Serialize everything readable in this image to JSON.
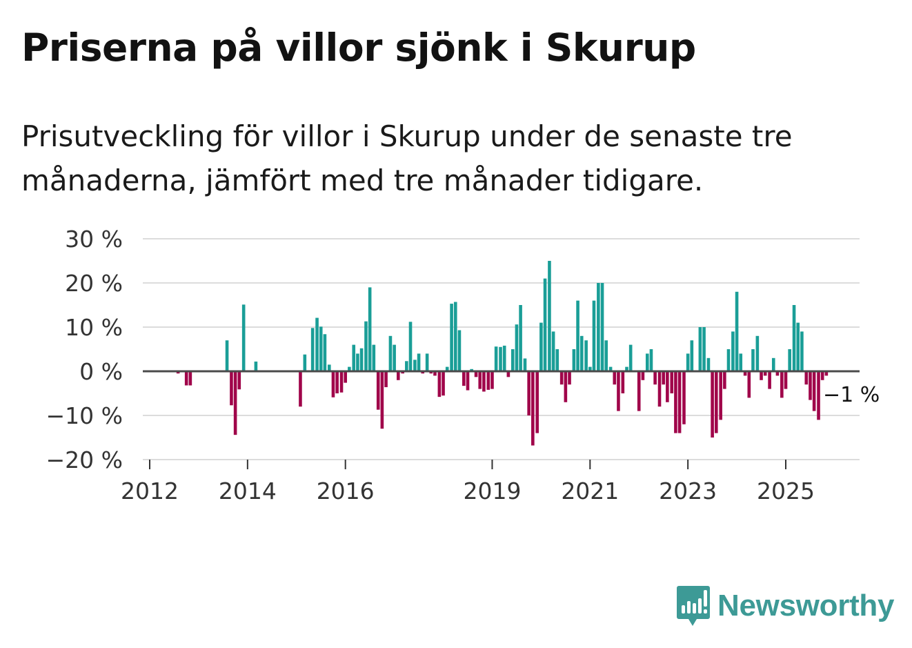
{
  "title": "Priserna på villor sjönk i Skurup",
  "subtitle": "Prisutveckling för villor i Skurup under de senaste tre månaderna, jämfört med tre månader tidigare.",
  "logo": {
    "text": "Newsworthy",
    "icon": "bar-chart-speech-bubble-icon"
  },
  "colors": {
    "positive": "#1a9e97",
    "negative": "#a0054a",
    "grid": "#dcdcdc",
    "zero_line": "#4a4a4a",
    "text": "#121212",
    "brand": "#3d9a96"
  },
  "chart_data": {
    "type": "bar",
    "title": "Priserna på villor sjönk i Skurup",
    "ylabel": "",
    "xlabel": "",
    "ylim": [
      -20,
      30
    ],
    "xlim": [
      2012.0,
      2026.5
    ],
    "y_ticks": [
      30,
      20,
      10,
      0,
      -10,
      -20
    ],
    "y_tick_labels": [
      "30 %",
      "20 %",
      "10 %",
      "0 %",
      "−10 %",
      "−20 %"
    ],
    "x_ticks": [
      2012,
      2014,
      2016,
      2019,
      2021,
      2023,
      2025
    ],
    "x_tick_labels": [
      "2012",
      "2014",
      "2016",
      "2019",
      "2021",
      "2023",
      "2025"
    ],
    "annotation": {
      "text": "−1 %",
      "x": 2025.75,
      "value": -1
    },
    "series": [
      {
        "name": "Prisutveckling",
        "x": [
          2012.58,
          2012.75,
          2012.83,
          2013.58,
          2013.67,
          2013.75,
          2013.83,
          2013.92,
          2014.17,
          2015.08,
          2015.17,
          2015.33,
          2015.42,
          2015.5,
          2015.58,
          2015.67,
          2015.75,
          2015.83,
          2015.92,
          2016.0,
          2016.08,
          2016.17,
          2016.25,
          2016.33,
          2016.42,
          2016.5,
          2016.58,
          2016.67,
          2016.75,
          2016.83,
          2016.92,
          2017.0,
          2017.08,
          2017.17,
          2017.25,
          2017.33,
          2017.42,
          2017.5,
          2017.58,
          2017.67,
          2017.75,
          2017.83,
          2017.92,
          2018.0,
          2018.08,
          2018.17,
          2018.25,
          2018.33,
          2018.42,
          2018.5,
          2018.58,
          2018.67,
          2018.75,
          2018.83,
          2018.92,
          2019.0,
          2019.08,
          2019.17,
          2019.25,
          2019.33,
          2019.42,
          2019.5,
          2019.58,
          2019.67,
          2019.75,
          2019.83,
          2019.92,
          2020.0,
          2020.08,
          2020.17,
          2020.25,
          2020.33,
          2020.42,
          2020.5,
          2020.58,
          2020.67,
          2020.75,
          2020.83,
          2020.92,
          2021.0,
          2021.08,
          2021.17,
          2021.25,
          2021.33,
          2021.42,
          2021.5,
          2021.58,
          2021.67,
          2021.75,
          2021.83,
          2022.0,
          2022.08,
          2022.17,
          2022.25,
          2022.33,
          2022.42,
          2022.5,
          2022.58,
          2022.67,
          2022.75,
          2022.83,
          2022.92,
          2023.0,
          2023.08,
          2023.25,
          2023.33,
          2023.42,
          2023.5,
          2023.58,
          2023.67,
          2023.75,
          2023.83,
          2023.92,
          2024.0,
          2024.08,
          2024.17,
          2024.25,
          2024.33,
          2024.42,
          2024.5,
          2024.58,
          2024.67,
          2024.75,
          2024.83,
          2024.92,
          2025.0,
          2025.08,
          2025.17,
          2025.25,
          2025.33,
          2025.42,
          2025.5,
          2025.58,
          2025.67,
          2025.75,
          2025.83
        ],
        "values": [
          -0.5,
          -3.2,
          -3.2,
          7,
          -7.7,
          -14.4,
          -4.1,
          15.1,
          2.2,
          -8,
          3.8,
          9.8,
          12.1,
          10.1,
          8.4,
          1.5,
          -5.9,
          -5,
          -4.8,
          -2.6,
          1,
          6,
          4,
          5.2,
          11.3,
          19,
          6,
          -8.7,
          -13,
          -3.6,
          8,
          6,
          -2,
          -0.5,
          2.3,
          11.2,
          2.6,
          4,
          -0.5,
          4,
          -0.5,
          -1,
          -5.8,
          -5.5,
          1,
          15.3,
          15.7,
          9.3,
          -3.3,
          -4.3,
          0.5,
          -1.3,
          -4,
          -4.6,
          -4.2,
          -4,
          5.6,
          5.5,
          5.8,
          -1.3,
          5,
          10.6,
          15,
          2.9,
          -10,
          -16.8,
          -14,
          11,
          21,
          25,
          9,
          5,
          -3,
          -7,
          -3,
          5,
          16,
          8,
          7,
          1,
          16,
          20,
          20,
          7,
          1,
          -3,
          -9,
          -5,
          1,
          6,
          -9,
          -2,
          4,
          5,
          -3,
          -8,
          -3,
          -7,
          -5,
          -14,
          -14,
          -12,
          4,
          7,
          10,
          10,
          3,
          -15,
          -14,
          -11,
          -4,
          5,
          9,
          18,
          4,
          -1,
          -6,
          5,
          8,
          -2,
          -1,
          -4,
          3,
          -1,
          -6,
          -4,
          5,
          15,
          11,
          9,
          -3,
          -6.5,
          -9,
          -11,
          -2,
          -1
        ]
      }
    ]
  }
}
